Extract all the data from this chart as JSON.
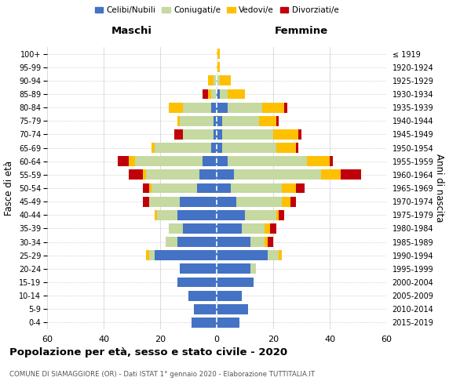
{
  "age_groups": [
    "0-4",
    "5-9",
    "10-14",
    "15-19",
    "20-24",
    "25-29",
    "30-34",
    "35-39",
    "40-44",
    "45-49",
    "50-54",
    "55-59",
    "60-64",
    "65-69",
    "70-74",
    "75-79",
    "80-84",
    "85-89",
    "90-94",
    "95-99",
    "100+"
  ],
  "birth_years": [
    "2015-2019",
    "2010-2014",
    "2005-2009",
    "2000-2004",
    "1995-1999",
    "1990-1994",
    "1985-1989",
    "1980-1984",
    "1975-1979",
    "1970-1974",
    "1965-1969",
    "1960-1964",
    "1955-1959",
    "1950-1954",
    "1945-1949",
    "1940-1944",
    "1935-1939",
    "1930-1934",
    "1925-1929",
    "1920-1924",
    "≤ 1919"
  ],
  "maschi": {
    "celibi": [
      9,
      8,
      10,
      14,
      13,
      22,
      14,
      12,
      14,
      13,
      7,
      6,
      5,
      2,
      1,
      1,
      2,
      0,
      0,
      0,
      0
    ],
    "coniugati": [
      0,
      0,
      0,
      0,
      0,
      2,
      4,
      5,
      7,
      11,
      16,
      19,
      24,
      20,
      11,
      12,
      10,
      2,
      1,
      0,
      0
    ],
    "vedovi": [
      0,
      0,
      0,
      0,
      0,
      1,
      0,
      0,
      1,
      0,
      1,
      1,
      2,
      1,
      0,
      1,
      5,
      1,
      2,
      0,
      0
    ],
    "divorziati": [
      0,
      0,
      0,
      0,
      0,
      0,
      0,
      0,
      0,
      2,
      2,
      5,
      4,
      0,
      3,
      0,
      0,
      2,
      0,
      0,
      0
    ]
  },
  "femmine": {
    "nubili": [
      8,
      11,
      9,
      13,
      12,
      18,
      12,
      9,
      10,
      7,
      5,
      6,
      4,
      2,
      2,
      2,
      4,
      1,
      0,
      0,
      0
    ],
    "coniugate": [
      0,
      0,
      0,
      0,
      2,
      4,
      5,
      8,
      11,
      16,
      18,
      31,
      28,
      19,
      18,
      13,
      12,
      3,
      1,
      0,
      0
    ],
    "vedove": [
      0,
      0,
      0,
      0,
      0,
      1,
      1,
      2,
      1,
      3,
      5,
      7,
      8,
      7,
      9,
      6,
      8,
      6,
      4,
      1,
      1
    ],
    "divorziate": [
      0,
      0,
      0,
      0,
      0,
      0,
      2,
      2,
      2,
      2,
      3,
      7,
      1,
      1,
      1,
      1,
      1,
      0,
      0,
      0,
      0
    ]
  },
  "colors": {
    "celibi": "#4472c4",
    "coniugati": "#c5d9a0",
    "vedovi": "#ffc000",
    "divorziati": "#c0000a"
  },
  "title": "Popolazione per età, sesso e stato civile - 2020",
  "subtitle": "COMUNE DI SIAMAGGIORE (OR) - Dati ISTAT 1° gennaio 2020 - Elaborazione TUTTITALIA.IT",
  "ylabel_left": "Fasce di età",
  "ylabel_right": "Anni di nascita",
  "xlabel_left": "Maschi",
  "xlabel_right": "Femmine",
  "xlim": 60,
  "legend_labels": [
    "Celibi/Nubili",
    "Coniugati/e",
    "Vedovi/e",
    "Divorziati/e"
  ],
  "background_color": "#ffffff",
  "grid_color": "#cccccc"
}
